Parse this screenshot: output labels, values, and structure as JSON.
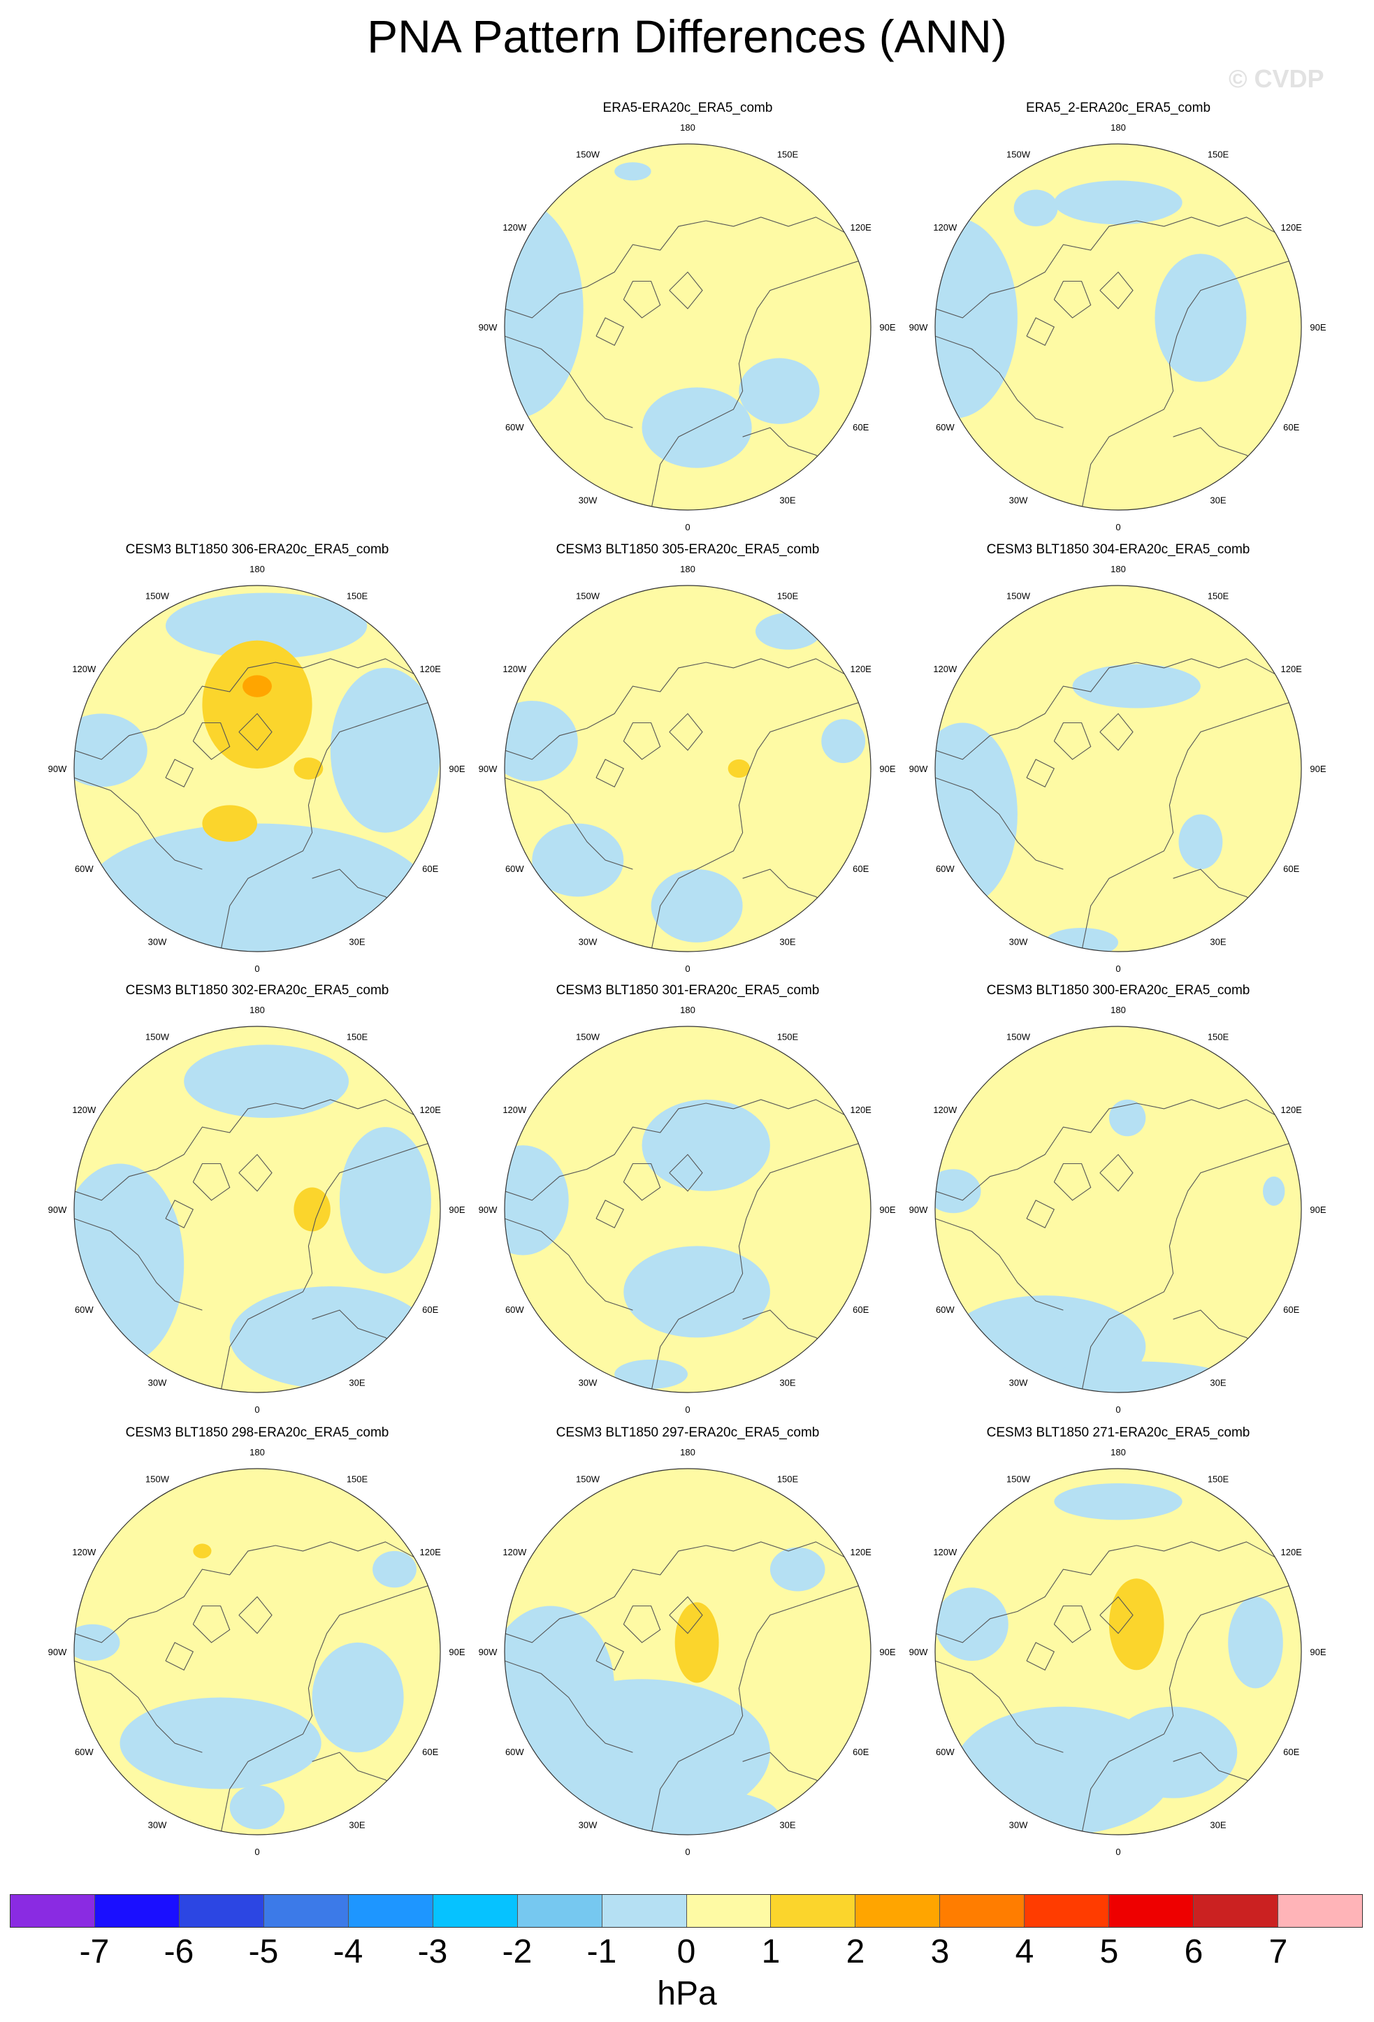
{
  "title": "PNA Pattern Differences (ANN)",
  "watermark": "© CVDP",
  "panels": [
    {
      "title": "ERA5-ERA20c_ERA5_comb",
      "blue": [
        [
          -0.95,
          0.1,
          0.38,
          0.6
        ],
        [
          0.05,
          -0.55,
          0.3,
          0.22
        ],
        [
          0.5,
          -0.35,
          0.22,
          0.18
        ],
        [
          -0.3,
          0.85,
          0.1,
          0.05
        ]
      ],
      "orange": [],
      "dark": []
    },
    {
      "title": "ERA5_2-ERA20c_ERA5_comb",
      "blue": [
        [
          -0.9,
          0.05,
          0.35,
          0.55
        ],
        [
          0.0,
          0.68,
          0.35,
          0.12
        ],
        [
          0.45,
          0.05,
          0.25,
          0.35
        ],
        [
          -0.45,
          0.65,
          0.12,
          0.1
        ]
      ],
      "orange": [],
      "dark": []
    },
    {
      "title": "CESM3 BLT1850 306-ERA20c_ERA5_comb",
      "blue": [
        [
          0.0,
          -0.7,
          0.95,
          0.4
        ],
        [
          0.05,
          0.78,
          0.55,
          0.18
        ],
        [
          0.7,
          0.1,
          0.3,
          0.45
        ],
        [
          -0.85,
          0.1,
          0.25,
          0.2
        ]
      ],
      "orange": [
        [
          0.0,
          0.35,
          0.3,
          0.35
        ],
        [
          -0.15,
          -0.3,
          0.15,
          0.1
        ],
        [
          0.28,
          0.0,
          0.08,
          0.06
        ]
      ],
      "dark": [
        [
          0.0,
          0.45,
          0.08,
          0.06
        ]
      ]
    },
    {
      "title": "CESM3 BLT1850 305-ERA20c_ERA5_comb",
      "blue": [
        [
          -0.85,
          0.15,
          0.25,
          0.22
        ],
        [
          -0.6,
          -0.5,
          0.25,
          0.2
        ],
        [
          0.05,
          -0.75,
          0.25,
          0.2
        ],
        [
          0.55,
          0.75,
          0.18,
          0.1
        ],
        [
          0.85,
          0.15,
          0.12,
          0.12
        ]
      ],
      "orange": [
        [
          0.28,
          0.0,
          0.06,
          0.05
        ]
      ],
      "dark": []
    },
    {
      "title": "CESM3 BLT1850 304-ERA20c_ERA5_comb",
      "blue": [
        [
          -0.85,
          -0.25,
          0.3,
          0.5
        ],
        [
          0.1,
          0.45,
          0.35,
          0.12
        ],
        [
          0.45,
          -0.4,
          0.12,
          0.15
        ],
        [
          -0.2,
          -0.95,
          0.2,
          0.08
        ]
      ],
      "orange": [],
      "dark": []
    },
    {
      "title": "CESM3 BLT1850 302-ERA20c_ERA5_comb",
      "blue": [
        [
          -0.75,
          -0.3,
          0.35,
          0.55
        ],
        [
          0.05,
          0.7,
          0.45,
          0.2
        ],
        [
          0.4,
          -0.7,
          0.55,
          0.28
        ],
        [
          0.7,
          0.05,
          0.25,
          0.4
        ]
      ],
      "orange": [
        [
          0.3,
          0.0,
          0.1,
          0.12
        ]
      ],
      "dark": []
    },
    {
      "title": "CESM3 BLT1850 301-ERA20c_ERA5_comb",
      "blue": [
        [
          -0.9,
          0.05,
          0.25,
          0.3
        ],
        [
          0.1,
          0.35,
          0.35,
          0.25
        ],
        [
          0.05,
          -0.45,
          0.4,
          0.25
        ],
        [
          -0.2,
          -0.9,
          0.2,
          0.08
        ]
      ],
      "orange": [],
      "dark": []
    },
    {
      "title": "CESM3 BLT1850 300-ERA20c_ERA5_comb",
      "blue": [
        [
          -0.4,
          -0.75,
          0.55,
          0.28
        ],
        [
          0.1,
          -0.95,
          0.55,
          0.12
        ],
        [
          -0.9,
          0.1,
          0.15,
          0.12
        ],
        [
          0.05,
          0.5,
          0.1,
          0.1
        ],
        [
          0.85,
          0.1,
          0.06,
          0.08
        ]
      ],
      "orange": [],
      "dark": []
    },
    {
      "title": "CESM3 BLT1850 298-ERA20c_ERA5_comb",
      "blue": [
        [
          -0.2,
          -0.5,
          0.55,
          0.25
        ],
        [
          0.55,
          -0.25,
          0.25,
          0.3
        ],
        [
          -0.9,
          0.05,
          0.15,
          0.1
        ],
        [
          0.0,
          -0.85,
          0.15,
          0.12
        ],
        [
          0.75,
          0.45,
          0.12,
          0.1
        ]
      ],
      "orange": [
        [
          -0.3,
          0.55,
          0.05,
          0.04
        ]
      ],
      "dark": []
    },
    {
      "title": "CESM3 BLT1850 297-ERA20c_ERA5_comb",
      "blue": [
        [
          -0.25,
          -0.55,
          0.7,
          0.4
        ],
        [
          -0.75,
          -0.2,
          0.35,
          0.45
        ],
        [
          0.6,
          0.45,
          0.15,
          0.12
        ],
        [
          0.05,
          -0.9,
          0.45,
          0.15
        ]
      ],
      "orange": [
        [
          0.05,
          0.05,
          0.12,
          0.22
        ]
      ],
      "dark": []
    },
    {
      "title": "CESM3 BLT1850 271-ERA20c_ERA5_comb",
      "blue": [
        [
          -0.3,
          -0.65,
          0.6,
          0.35
        ],
        [
          0.3,
          -0.55,
          0.35,
          0.25
        ],
        [
          0.0,
          0.82,
          0.35,
          0.1
        ],
        [
          -0.8,
          0.15,
          0.2,
          0.2
        ],
        [
          0.75,
          0.05,
          0.15,
          0.25
        ]
      ],
      "orange": [
        [
          0.1,
          0.15,
          0.15,
          0.25
        ]
      ],
      "dark": []
    }
  ],
  "lon_labels": [
    "180",
    "150E",
    "120E",
    "90E",
    "60E",
    "30E",
    "0",
    "30W",
    "60W",
    "90W",
    "120W",
    "150W"
  ],
  "colorbar": {
    "colors": [
      "#8a2be2",
      "#1a0fff",
      "#2c46e3",
      "#3c7ae8",
      "#1e96ff",
      "#06c2ff",
      "#76c8f0",
      "#b5e0f3",
      "#fefaa4",
      "#fbd52c",
      "#ffa500",
      "#ff7d00",
      "#ff3c00",
      "#ee0000",
      "#cb2121",
      "#ffb4b8"
    ],
    "labels": [
      "-7",
      "-6",
      "-5",
      "-4",
      "-3",
      "-2",
      "-1",
      "0",
      "1",
      "2",
      "3",
      "4",
      "5",
      "6",
      "7"
    ],
    "unit": "hPa"
  },
  "palette": {
    "positive": "#fefaa4",
    "negative": "#b5e0f3",
    "strong": "#fbd52c",
    "stronger": "#ffa500",
    "coast": "#555555"
  }
}
